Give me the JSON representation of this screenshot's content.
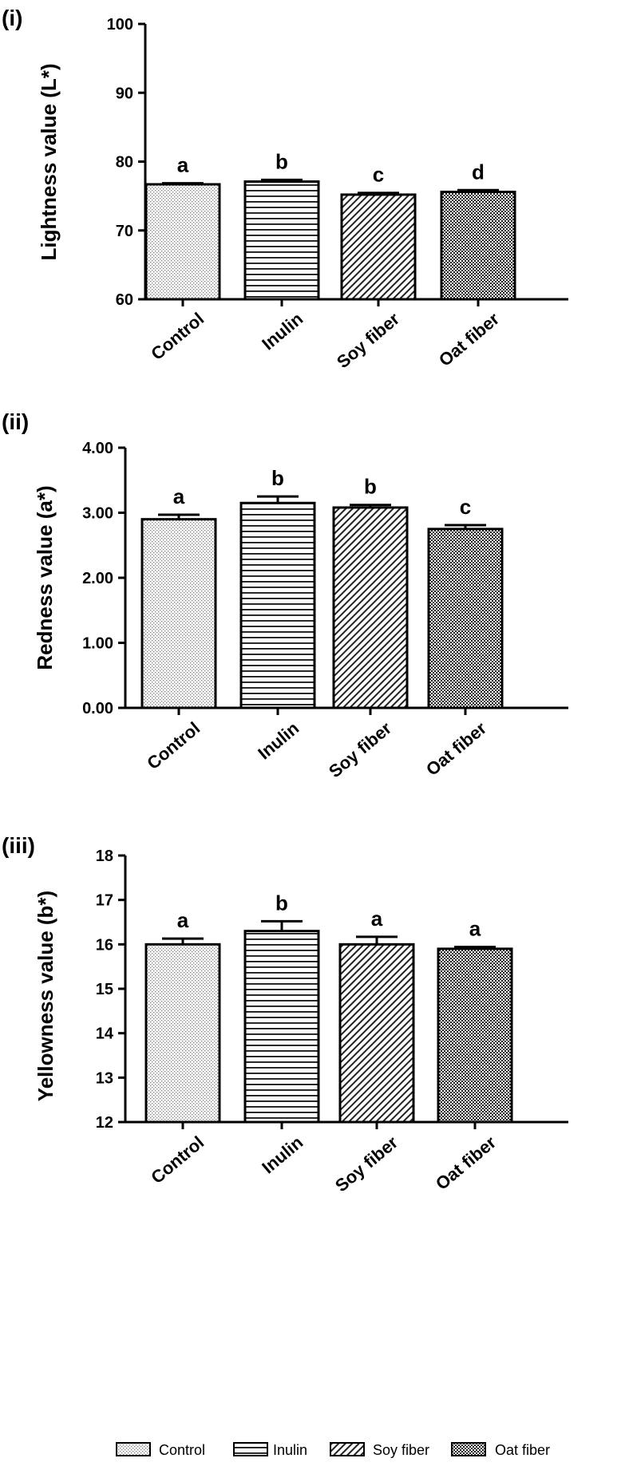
{
  "chart_data": [
    {
      "type": "bar",
      "panel": "(i)",
      "ylabel": "Lightness value (L*)",
      "categories": [
        "Control",
        "Inulin",
        "Soy fiber",
        "Oat fiber"
      ],
      "values": [
        76.7,
        77.1,
        75.2,
        75.6
      ],
      "errors": [
        0.15,
        0.25,
        0.25,
        0.25
      ],
      "letters": [
        "a",
        "b",
        "c",
        "d"
      ],
      "ylim": [
        60,
        100
      ],
      "yticks": [
        "60",
        "70",
        "80",
        "90",
        "100"
      ],
      "yticks_values": [
        60,
        70,
        80,
        90,
        100
      ]
    },
    {
      "type": "bar",
      "panel": "(ii)",
      "ylabel": "Redness value (a*)",
      "categories": [
        "Control",
        "Inulin",
        "Soy fiber",
        "Oat fiber"
      ],
      "values": [
        2.9,
        3.15,
        3.08,
        2.75
      ],
      "errors": [
        0.07,
        0.1,
        0.04,
        0.06
      ],
      "letters": [
        "a",
        "b",
        "b",
        "c"
      ],
      "ylim": [
        0,
        4
      ],
      "yticks": [
        "0.00",
        "1.00",
        "2.00",
        "3.00",
        "4.00"
      ],
      "yticks_values": [
        0,
        1,
        2,
        3,
        4
      ]
    },
    {
      "type": "bar",
      "panel": "(iii)",
      "ylabel": "Yellowness value (b*)",
      "categories": [
        "Control",
        "Inulin",
        "Soy fiber",
        "Oat fiber"
      ],
      "values": [
        16.0,
        16.3,
        16.0,
        15.9
      ],
      "errors": [
        0.13,
        0.22,
        0.17,
        0.04
      ],
      "letters": [
        "a",
        "b",
        "a",
        "a"
      ],
      "ylim": [
        12,
        18
      ],
      "yticks": [
        "12",
        "13",
        "14",
        "15",
        "16",
        "17",
        "18"
      ],
      "yticks_values": [
        12,
        13,
        14,
        15,
        16,
        17,
        18
      ]
    }
  ],
  "legend": [
    {
      "label": "Control",
      "pattern": "dots"
    },
    {
      "label": "Inulin",
      "pattern": "hlines"
    },
    {
      "label": "Soy fiber",
      "pattern": "diag"
    },
    {
      "label": "Oat fiber",
      "pattern": "checker"
    }
  ]
}
